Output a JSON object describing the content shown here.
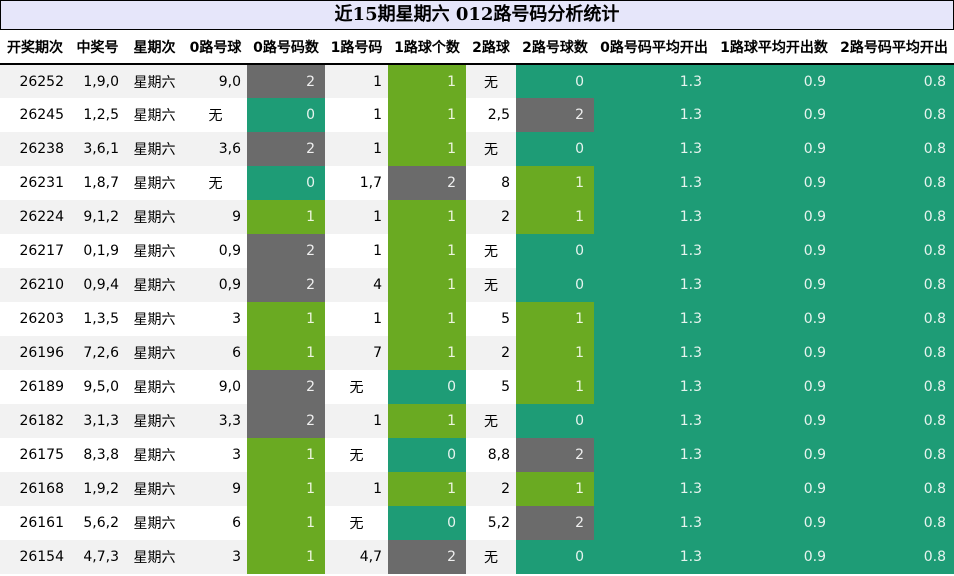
{
  "title": "近15期星期六 012路号码分析统计",
  "headers": [
    "开奖期次",
    "中奖号",
    "星期次",
    "0路号球",
    "0路号码数",
    "1路号码",
    "1路球个数",
    "2路球",
    "2路号球数",
    "0路号码平均开出",
    "1路球平均开出数",
    "2路号码平均开出"
  ],
  "colors": {
    "count_0": "#1e9c76",
    "count_1": "#6aaa22",
    "count_2": "#6b6b6b",
    "average": "#1e9c76",
    "title_bg": "#e6e6fa"
  },
  "rows": [
    {
      "period": "26252",
      "number": "1,9,0",
      "weekday": "星期六",
      "road0": "9,0",
      "road0_count": "2",
      "road1": "1",
      "road1_count": "1",
      "road2": "无",
      "road2_count": "0",
      "avg0": "1.3",
      "avg1": "0.9",
      "avg2": "0.8"
    },
    {
      "period": "26245",
      "number": "1,2,5",
      "weekday": "星期六",
      "road0": "无",
      "road0_count": "0",
      "road1": "1",
      "road1_count": "1",
      "road2": "2,5",
      "road2_count": "2",
      "avg0": "1.3",
      "avg1": "0.9",
      "avg2": "0.8"
    },
    {
      "period": "26238",
      "number": "3,6,1",
      "weekday": "星期六",
      "road0": "3,6",
      "road0_count": "2",
      "road1": "1",
      "road1_count": "1",
      "road2": "无",
      "road2_count": "0",
      "avg0": "1.3",
      "avg1": "0.9",
      "avg2": "0.8"
    },
    {
      "period": "26231",
      "number": "1,8,7",
      "weekday": "星期六",
      "road0": "无",
      "road0_count": "0",
      "road1": "1,7",
      "road1_count": "2",
      "road2": "8",
      "road2_count": "1",
      "avg0": "1.3",
      "avg1": "0.9",
      "avg2": "0.8"
    },
    {
      "period": "26224",
      "number": "9,1,2",
      "weekday": "星期六",
      "road0": "9",
      "road0_count": "1",
      "road1": "1",
      "road1_count": "1",
      "road2": "2",
      "road2_count": "1",
      "avg0": "1.3",
      "avg1": "0.9",
      "avg2": "0.8"
    },
    {
      "period": "26217",
      "number": "0,1,9",
      "weekday": "星期六",
      "road0": "0,9",
      "road0_count": "2",
      "road1": "1",
      "road1_count": "1",
      "road2": "无",
      "road2_count": "0",
      "avg0": "1.3",
      "avg1": "0.9",
      "avg2": "0.8"
    },
    {
      "period": "26210",
      "number": "0,9,4",
      "weekday": "星期六",
      "road0": "0,9",
      "road0_count": "2",
      "road1": "4",
      "road1_count": "1",
      "road2": "无",
      "road2_count": "0",
      "avg0": "1.3",
      "avg1": "0.9",
      "avg2": "0.8"
    },
    {
      "period": "26203",
      "number": "1,3,5",
      "weekday": "星期六",
      "road0": "3",
      "road0_count": "1",
      "road1": "1",
      "road1_count": "1",
      "road2": "5",
      "road2_count": "1",
      "avg0": "1.3",
      "avg1": "0.9",
      "avg2": "0.8"
    },
    {
      "period": "26196",
      "number": "7,2,6",
      "weekday": "星期六",
      "road0": "6",
      "road0_count": "1",
      "road1": "7",
      "road1_count": "1",
      "road2": "2",
      "road2_count": "1",
      "avg0": "1.3",
      "avg1": "0.9",
      "avg2": "0.8"
    },
    {
      "period": "26189",
      "number": "9,5,0",
      "weekday": "星期六",
      "road0": "9,0",
      "road0_count": "2",
      "road1": "无",
      "road1_count": "0",
      "road2": "5",
      "road2_count": "1",
      "avg0": "1.3",
      "avg1": "0.9",
      "avg2": "0.8"
    },
    {
      "period": "26182",
      "number": "3,1,3",
      "weekday": "星期六",
      "road0": "3,3",
      "road0_count": "2",
      "road1": "1",
      "road1_count": "1",
      "road2": "无",
      "road2_count": "0",
      "avg0": "1.3",
      "avg1": "0.9",
      "avg2": "0.8"
    },
    {
      "period": "26175",
      "number": "8,3,8",
      "weekday": "星期六",
      "road0": "3",
      "road0_count": "1",
      "road1": "无",
      "road1_count": "0",
      "road2": "8,8",
      "road2_count": "2",
      "avg0": "1.3",
      "avg1": "0.9",
      "avg2": "0.8"
    },
    {
      "period": "26168",
      "number": "1,9,2",
      "weekday": "星期六",
      "road0": "9",
      "road0_count": "1",
      "road1": "1",
      "road1_count": "1",
      "road2": "2",
      "road2_count": "1",
      "avg0": "1.3",
      "avg1": "0.9",
      "avg2": "0.8"
    },
    {
      "period": "26161",
      "number": "5,6,2",
      "weekday": "星期六",
      "road0": "6",
      "road0_count": "1",
      "road1": "无",
      "road1_count": "0",
      "road2": "5,2",
      "road2_count": "2",
      "avg0": "1.3",
      "avg1": "0.9",
      "avg2": "0.8"
    },
    {
      "period": "26154",
      "number": "4,7,3",
      "weekday": "星期六",
      "road0": "3",
      "road0_count": "1",
      "road1": "4,7",
      "road1_count": "2",
      "road2": "无",
      "road2_count": "0",
      "avg0": "1.3",
      "avg1": "0.9",
      "avg2": "0.8"
    }
  ]
}
